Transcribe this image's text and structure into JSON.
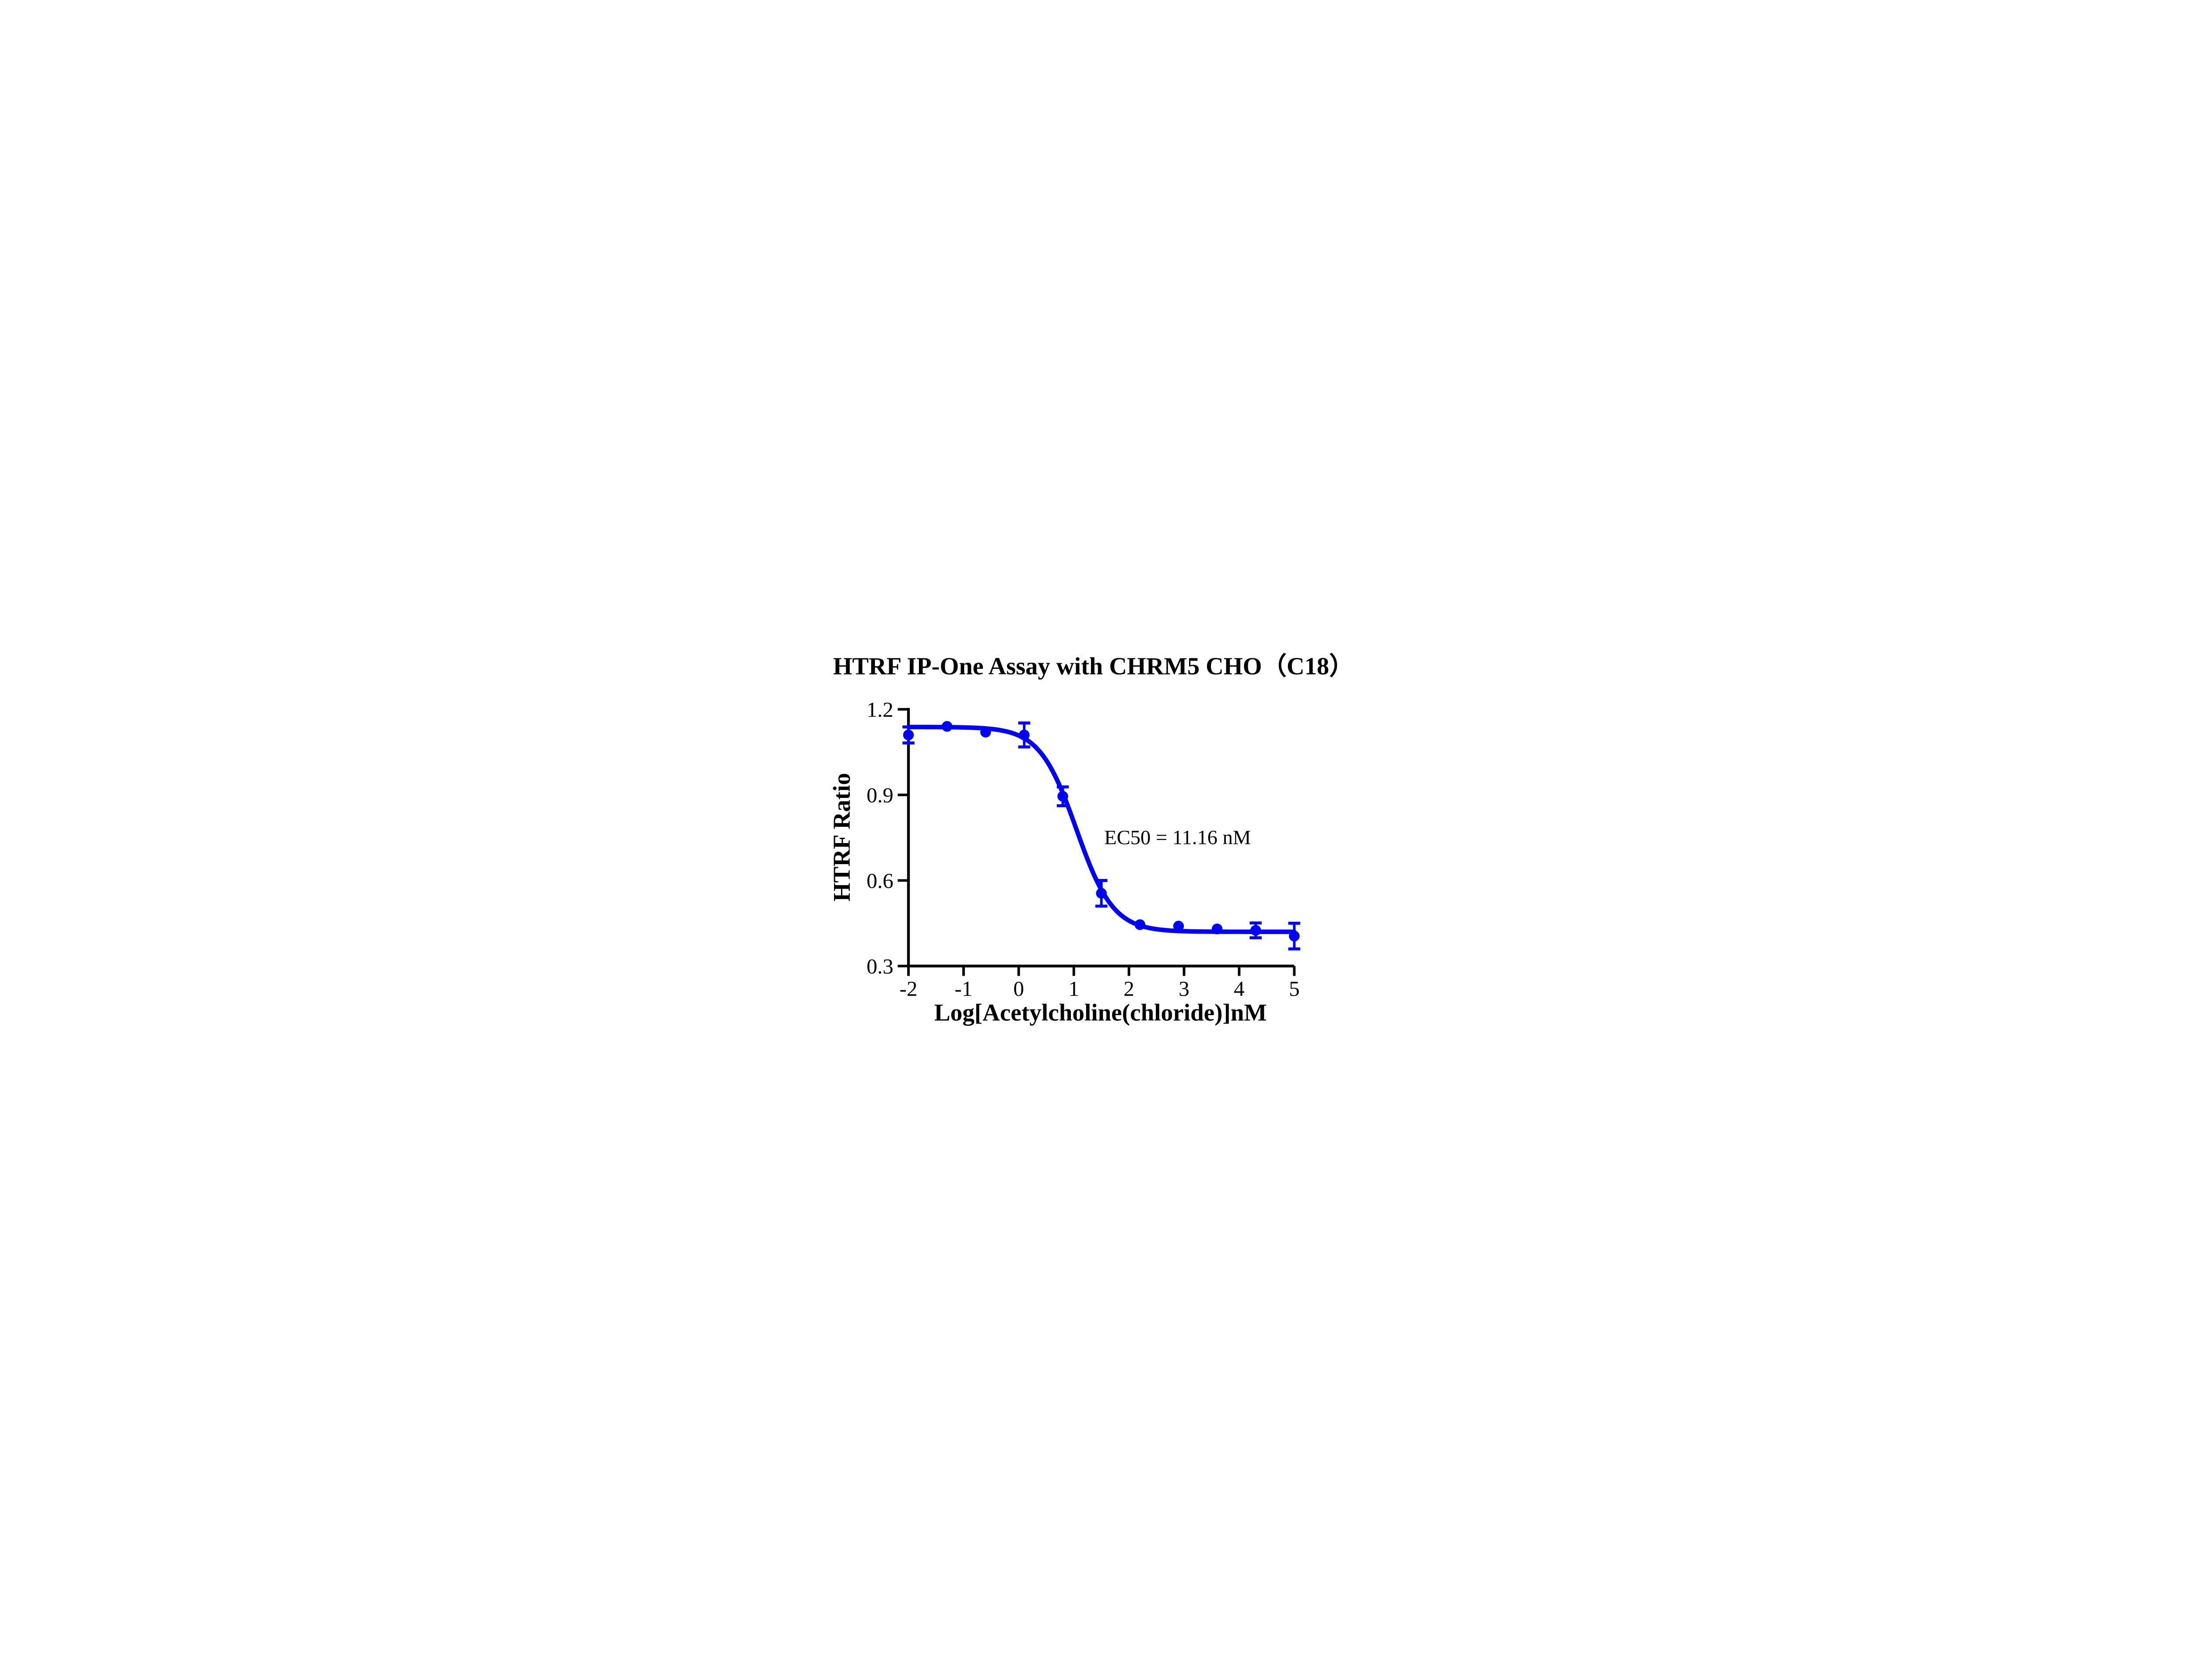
{
  "figure": {
    "background": "#ffffff"
  },
  "chart_data": {
    "type": "scatter",
    "subtype": "dose-response-curve-with-error-bars",
    "title": "HTRF IP-One Assay with CHRM5 CHO（C18）",
    "xlabel": "Log[Acetylcholine(chloride)]nM",
    "ylabel": "HTRF Ratio",
    "annotation": "EC50 = 11.16 nM",
    "ec50_nM": 11.16,
    "xlim": [
      -2,
      5
    ],
    "ylim": [
      0.3,
      1.2
    ],
    "x_ticks": [
      -2,
      -1,
      0,
      1,
      2,
      3,
      4,
      5
    ],
    "x_tick_labels": [
      "-2",
      "-1",
      "0",
      "1",
      "2",
      "3",
      "4",
      "5"
    ],
    "y_ticks": [
      0.3,
      0.6,
      0.9,
      1.2
    ],
    "y_tick_labels": [
      "0.3",
      "0.6",
      "0.9",
      "1.2"
    ],
    "grid": false,
    "legend": null,
    "series": [
      {
        "name": "Acetylcholine (chloride)",
        "marker": "circle",
        "x": [
          -2.0,
          -1.3,
          -0.6,
          0.1,
          0.8,
          1.5,
          2.2,
          2.9,
          3.6,
          4.3,
          5.0
        ],
        "y": [
          1.11,
          1.14,
          1.12,
          1.11,
          0.895,
          0.555,
          0.445,
          0.44,
          0.43,
          0.425,
          0.405
        ],
        "yerr": [
          0.028,
          0.012,
          0.012,
          0.042,
          0.033,
          0.045,
          0.01,
          0.01,
          0.01,
          0.026,
          0.045
        ]
      }
    ],
    "fit": {
      "model": "sigmoidal_dose_response_variable_slope",
      "top": 1.138,
      "bottom": 0.42,
      "logEC50": 1.0477,
      "hill_slope": -1.3
    },
    "colors": {
      "curve": "#0000FE",
      "axis": "#000000",
      "text": "#000000",
      "background": "#ffffff"
    }
  }
}
